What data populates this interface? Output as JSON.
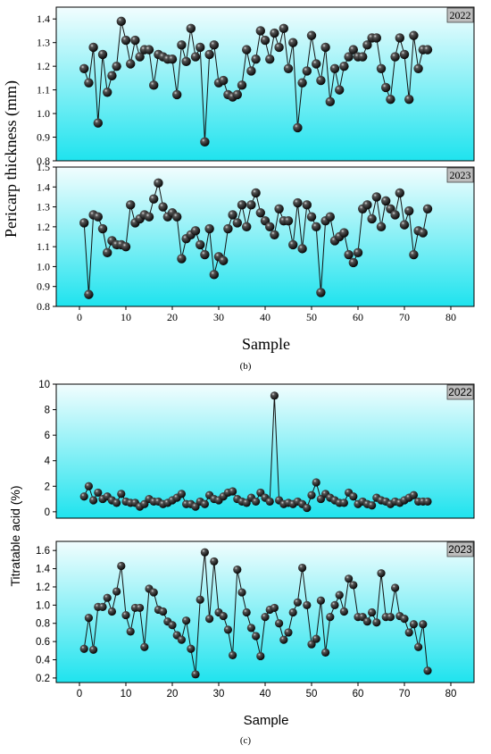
{
  "figure": {
    "label_b": "(b)",
    "label_c": "(c)"
  },
  "panels_b": {
    "ylabel": "Pericarp thickness (mm)",
    "xlabel": "Sample"
  },
  "panels_c": {
    "ylabel": "Titratable acid  (%)",
    "xlabel": "Sample"
  },
  "colors": {
    "fill_top": "#f2fdfe",
    "fill_bottom": "#1fe3ee",
    "marker": "#111111",
    "badge": "#bdbdbd"
  },
  "chart_data": [
    {
      "type": "line",
      "markers": "sphere",
      "year": "2022",
      "xlabel": "",
      "ylabel": "Pericarp thickness (mm)",
      "xlim": [
        -5,
        85
      ],
      "ylim": [
        0.8,
        1.45
      ],
      "yticks": [
        0.8,
        0.9,
        1.0,
        1.1,
        1.2,
        1.3,
        1.4
      ],
      "ytick_labels": [
        "0.8",
        "0.9",
        "1.0",
        "1.1",
        "1.2",
        "1.3",
        "1.4"
      ],
      "series": [
        {
          "values": [
            1.19,
            1.13,
            1.28,
            0.96,
            1.25,
            1.09,
            1.16,
            1.2,
            1.39,
            1.31,
            1.21,
            1.31,
            1.24,
            1.27,
            1.27,
            1.12,
            1.25,
            1.24,
            1.23,
            1.23,
            1.08,
            1.29,
            1.22,
            1.36,
            1.24,
            1.28,
            0.88,
            1.25,
            1.29,
            1.13,
            1.14,
            1.08,
            1.07,
            1.08,
            1.12,
            1.27,
            1.18,
            1.23,
            1.35,
            1.31,
            1.23,
            1.34,
            1.28,
            1.36,
            1.19,
            1.3,
            0.94,
            1.13,
            1.18,
            1.33,
            1.21,
            1.14,
            1.28,
            1.05,
            1.19,
            1.1,
            1.2,
            1.24,
            1.27,
            1.24,
            1.24,
            1.29,
            1.32,
            1.32,
            1.19,
            1.11,
            1.06,
            1.24,
            1.32,
            1.25,
            1.06,
            1.33,
            1.19,
            1.27,
            1.27
          ]
        }
      ]
    },
    {
      "type": "line",
      "markers": "sphere",
      "year": "2023",
      "xlabel": "Sample",
      "ylabel": "Pericarp thickness (mm)",
      "xlim": [
        -5,
        85
      ],
      "ylim": [
        0.8,
        1.5
      ],
      "xticks": [
        0,
        10,
        20,
        30,
        40,
        50,
        60,
        70,
        80
      ],
      "xtick_labels": [
        "0",
        "10",
        "20",
        "30",
        "40",
        "50",
        "60",
        "70",
        "80"
      ],
      "yticks": [
        0.8,
        0.9,
        1.0,
        1.1,
        1.2,
        1.3,
        1.4,
        1.5
      ],
      "ytick_labels": [
        "0.8",
        "0.9",
        "1.0",
        "1.1",
        "1.2",
        "1.3",
        "1.4",
        "1.5"
      ],
      "series": [
        {
          "values": [
            1.22,
            0.86,
            1.26,
            1.25,
            1.19,
            1.07,
            1.13,
            1.11,
            1.11,
            1.1,
            1.31,
            1.22,
            1.24,
            1.26,
            1.25,
            1.34,
            1.42,
            1.3,
            1.25,
            1.27,
            1.25,
            1.04,
            1.14,
            1.16,
            1.18,
            1.11,
            1.06,
            1.19,
            0.96,
            1.05,
            1.03,
            1.19,
            1.26,
            1.22,
            1.31,
            1.2,
            1.31,
            1.37,
            1.27,
            1.23,
            1.2,
            1.16,
            1.29,
            1.23,
            1.23,
            1.11,
            1.32,
            1.09,
            1.31,
            1.25,
            1.2,
            0.87,
            1.23,
            1.25,
            1.13,
            1.15,
            1.17,
            1.06,
            1.02,
            1.07,
            1.29,
            1.31,
            1.24,
            1.35,
            1.2,
            1.33,
            1.29,
            1.26,
            1.37,
            1.21,
            1.28,
            1.06,
            1.18,
            1.17,
            1.29
          ]
        }
      ]
    },
    {
      "type": "line",
      "markers": "sphere",
      "year": "2022",
      "xlabel": "",
      "ylabel": "Titratable acid  (%)",
      "xlim": [
        -5,
        85
      ],
      "ylim": [
        -0.5,
        10
      ],
      "yticks": [
        0,
        2,
        4,
        6,
        8,
        10
      ],
      "ytick_labels": [
        "0",
        "2",
        "4",
        "6",
        "8",
        "10"
      ],
      "series": [
        {
          "values": [
            1.2,
            2.0,
            0.9,
            1.5,
            1.0,
            1.2,
            0.9,
            0.7,
            1.4,
            0.8,
            0.7,
            0.7,
            0.4,
            0.6,
            1.0,
            0.8,
            0.8,
            0.6,
            0.7,
            0.9,
            1.1,
            1.4,
            0.6,
            0.6,
            0.4,
            0.8,
            0.6,
            1.3,
            1.0,
            0.9,
            1.2,
            1.5,
            1.6,
            1.0,
            0.8,
            0.7,
            1.1,
            0.8,
            1.5,
            1.1,
            0.8,
            9.1,
            0.9,
            0.6,
            0.7,
            0.6,
            0.8,
            0.6,
            0.3,
            1.3,
            2.3,
            1.0,
            1.4,
            1.1,
            0.9,
            0.7,
            0.7,
            1.5,
            1.2,
            0.6,
            0.8,
            0.6,
            0.5,
            1.1,
            0.9,
            0.8,
            0.6,
            0.8,
            0.7,
            0.9,
            1.1,
            1.3,
            0.8,
            0.8,
            0.8
          ]
        }
      ]
    },
    {
      "type": "line",
      "markers": "sphere",
      "year": "2023",
      "xlabel": "Sample",
      "ylabel": "Titratable acid  (%)",
      "xlim": [
        -5,
        85
      ],
      "ylim": [
        0.15,
        1.7
      ],
      "xticks": [
        0,
        10,
        20,
        30,
        40,
        50,
        60,
        70,
        80
      ],
      "xtick_labels": [
        "0",
        "10",
        "20",
        "30",
        "40",
        "50",
        "60",
        "70",
        "80"
      ],
      "yticks": [
        0.2,
        0.4,
        0.6,
        0.8,
        1.0,
        1.2,
        1.4,
        1.6
      ],
      "ytick_labels": [
        "0.2",
        "0.4",
        "0.6",
        "0.8",
        "1.0",
        "1.2",
        "1.4",
        "1.6"
      ],
      "series": [
        {
          "values": [
            0.52,
            0.86,
            0.51,
            0.98,
            0.98,
            1.08,
            0.93,
            1.15,
            1.43,
            0.89,
            0.71,
            0.97,
            0.97,
            0.54,
            1.18,
            1.14,
            0.95,
            0.93,
            0.82,
            0.78,
            0.67,
            0.62,
            0.83,
            0.52,
            0.24,
            1.06,
            1.58,
            0.85,
            1.48,
            0.92,
            0.88,
            0.73,
            0.45,
            1.39,
            1.14,
            0.92,
            0.75,
            0.66,
            0.44,
            0.87,
            0.95,
            0.97,
            0.8,
            0.62,
            0.7,
            0.92,
            1.03,
            1.41,
            1.0,
            0.57,
            0.63,
            1.05,
            0.48,
            0.87,
            1.0,
            1.11,
            0.93,
            1.29,
            1.22,
            0.87,
            0.87,
            0.82,
            0.92,
            0.81,
            1.35,
            0.87,
            0.87,
            1.19,
            0.88,
            0.85,
            0.7,
            0.79,
            0.54,
            0.79,
            0.28
          ]
        }
      ]
    }
  ]
}
